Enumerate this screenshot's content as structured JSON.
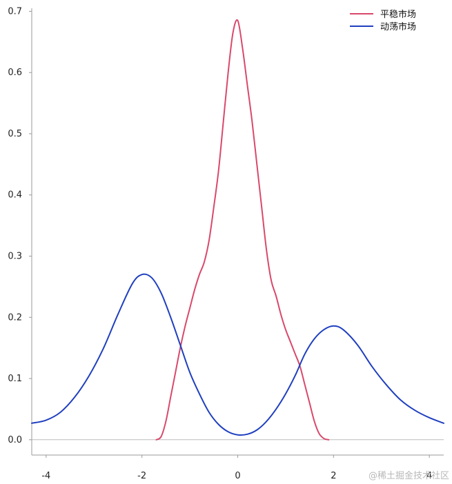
{
  "chart_data": {
    "type": "line",
    "title": "",
    "xlabel": "",
    "ylabel": "",
    "xlim": [
      -4.3,
      4.3
    ],
    "ylim": [
      -0.025,
      0.705
    ],
    "xticks": [
      -4,
      -2,
      0,
      2,
      4
    ],
    "xtick_labels": [
      "-4",
      "-2",
      "0",
      "2",
      "4"
    ],
    "yticks": [
      0.0,
      0.1,
      0.2,
      0.3,
      0.4,
      0.5,
      0.6,
      0.7
    ],
    "ytick_labels": [
      "0.0",
      "0.1",
      "0.2",
      "0.3",
      "0.4",
      "0.5",
      "0.6",
      "0.7"
    ],
    "grid": false,
    "baseline_y": 0,
    "legend_position": "top-right",
    "series": [
      {
        "name": "平稳市场",
        "color": "#d9486a",
        "x": [
          -1.7,
          -1.6,
          -1.5,
          -1.4,
          -1.3,
          -1.2,
          -1.1,
          -1.0,
          -0.9,
          -0.8,
          -0.7,
          -0.6,
          -0.5,
          -0.4,
          -0.3,
          -0.2,
          -0.1,
          0.0,
          0.1,
          0.2,
          0.3,
          0.4,
          0.5,
          0.6,
          0.7,
          0.8,
          0.9,
          1.0,
          1.1,
          1.2,
          1.3,
          1.4,
          1.5,
          1.6,
          1.7,
          1.8,
          1.9
        ],
        "y": [
          0.0,
          0.005,
          0.03,
          0.07,
          0.11,
          0.15,
          0.185,
          0.215,
          0.245,
          0.27,
          0.29,
          0.325,
          0.38,
          0.44,
          0.52,
          0.6,
          0.665,
          0.685,
          0.64,
          0.58,
          0.52,
          0.45,
          0.38,
          0.31,
          0.26,
          0.235,
          0.205,
          0.18,
          0.16,
          0.14,
          0.12,
          0.09,
          0.06,
          0.03,
          0.01,
          0.002,
          0.0
        ]
      },
      {
        "name": "动荡市场",
        "color": "#1f3fbf",
        "x": [
          -4.3,
          -4.0,
          -3.7,
          -3.4,
          -3.1,
          -2.8,
          -2.5,
          -2.2,
          -2.0,
          -1.8,
          -1.6,
          -1.4,
          -1.2,
          -1.0,
          -0.8,
          -0.6,
          -0.4,
          -0.2,
          0.0,
          0.2,
          0.4,
          0.6,
          0.8,
          1.0,
          1.2,
          1.4,
          1.6,
          1.8,
          2.0,
          2.2,
          2.5,
          2.8,
          3.1,
          3.4,
          3.7,
          4.0,
          4.3
        ],
        "y": [
          0.027,
          0.032,
          0.045,
          0.07,
          0.105,
          0.15,
          0.205,
          0.255,
          0.27,
          0.265,
          0.24,
          0.2,
          0.155,
          0.11,
          0.075,
          0.045,
          0.025,
          0.013,
          0.008,
          0.009,
          0.016,
          0.03,
          0.05,
          0.075,
          0.105,
          0.14,
          0.165,
          0.18,
          0.186,
          0.18,
          0.155,
          0.12,
          0.09,
          0.065,
          0.048,
          0.036,
          0.027
        ]
      }
    ]
  },
  "watermark": "@稀土掘金技术社区"
}
